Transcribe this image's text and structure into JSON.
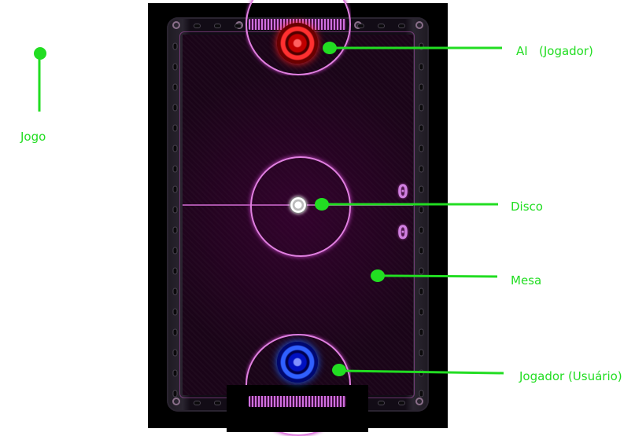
{
  "game": {
    "score_top": "0",
    "score_bottom": "0"
  },
  "annotations": {
    "jogo": "Jogo",
    "ai_player": "AI   (Jogador)",
    "disco": "Disco",
    "mesa": "Mesa",
    "user_player": "Jogador (Usuário)"
  },
  "colors": {
    "annotation": "#22dd22",
    "ai_mallet": "#ff2020",
    "user_mallet": "#2060ff",
    "table_lines": "#e080e0",
    "table_surface": "#1a0418"
  }
}
